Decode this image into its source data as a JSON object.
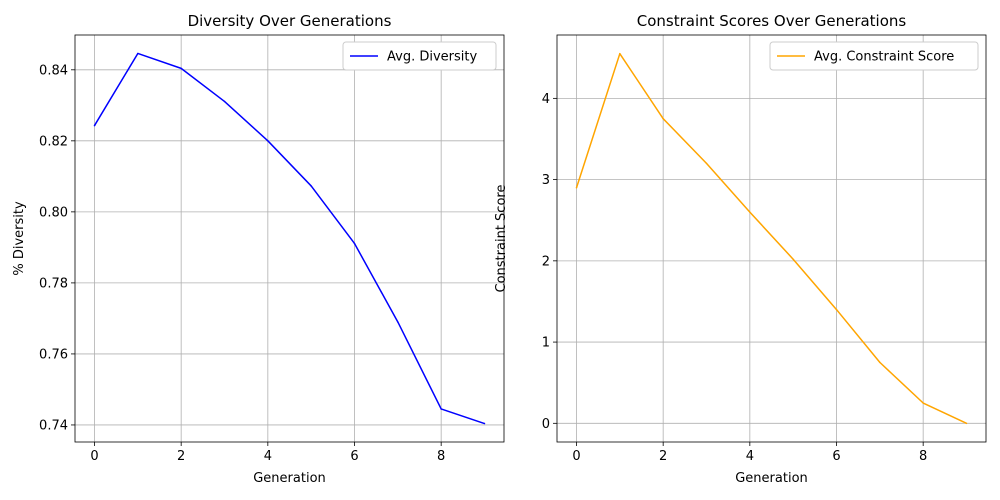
{
  "chart_data": [
    {
      "type": "line",
      "title": "Diversity Over Generations",
      "xlabel": "Generation",
      "ylabel": "% Diversity",
      "xlim": [
        -0.45,
        9.45
      ],
      "ylim": [
        0.7352,
        0.8498
      ],
      "xticks": [
        0,
        2,
        4,
        6,
        8
      ],
      "yticks": [
        0.74,
        0.76,
        0.78,
        0.8,
        0.82,
        0.84
      ],
      "ytick_decimals": 2,
      "grid": true,
      "legend_position": "top-right",
      "x": [
        0,
        1,
        2,
        3,
        4,
        5,
        6,
        7,
        8,
        9
      ],
      "series": [
        {
          "name": "Avg. Diversity",
          "color": "#0000ff",
          "values": [
            0.8243,
            0.8446,
            0.8404,
            0.8311,
            0.82,
            0.8073,
            0.7911,
            0.769,
            0.7445,
            0.7404
          ]
        }
      ]
    },
    {
      "type": "line",
      "title": "Constraint Scores Over Generations",
      "xlabel": "Generation",
      "ylabel": "Constraint Score",
      "xlim": [
        -0.45,
        9.45
      ],
      "ylim": [
        -0.23,
        4.78
      ],
      "xticks": [
        0,
        2,
        4,
        6,
        8
      ],
      "yticks": [
        0,
        1,
        2,
        3,
        4
      ],
      "ytick_decimals": 0,
      "grid": true,
      "legend_position": "top-right",
      "x": [
        0,
        1,
        2,
        3,
        4,
        5,
        6,
        7,
        8,
        9
      ],
      "series": [
        {
          "name": "Avg. Constraint Score",
          "color": "#ffa500",
          "values": [
            2.9,
            4.55,
            3.75,
            3.2,
            2.6,
            2.02,
            1.4,
            0.75,
            0.25,
            0.0
          ]
        }
      ]
    }
  ]
}
